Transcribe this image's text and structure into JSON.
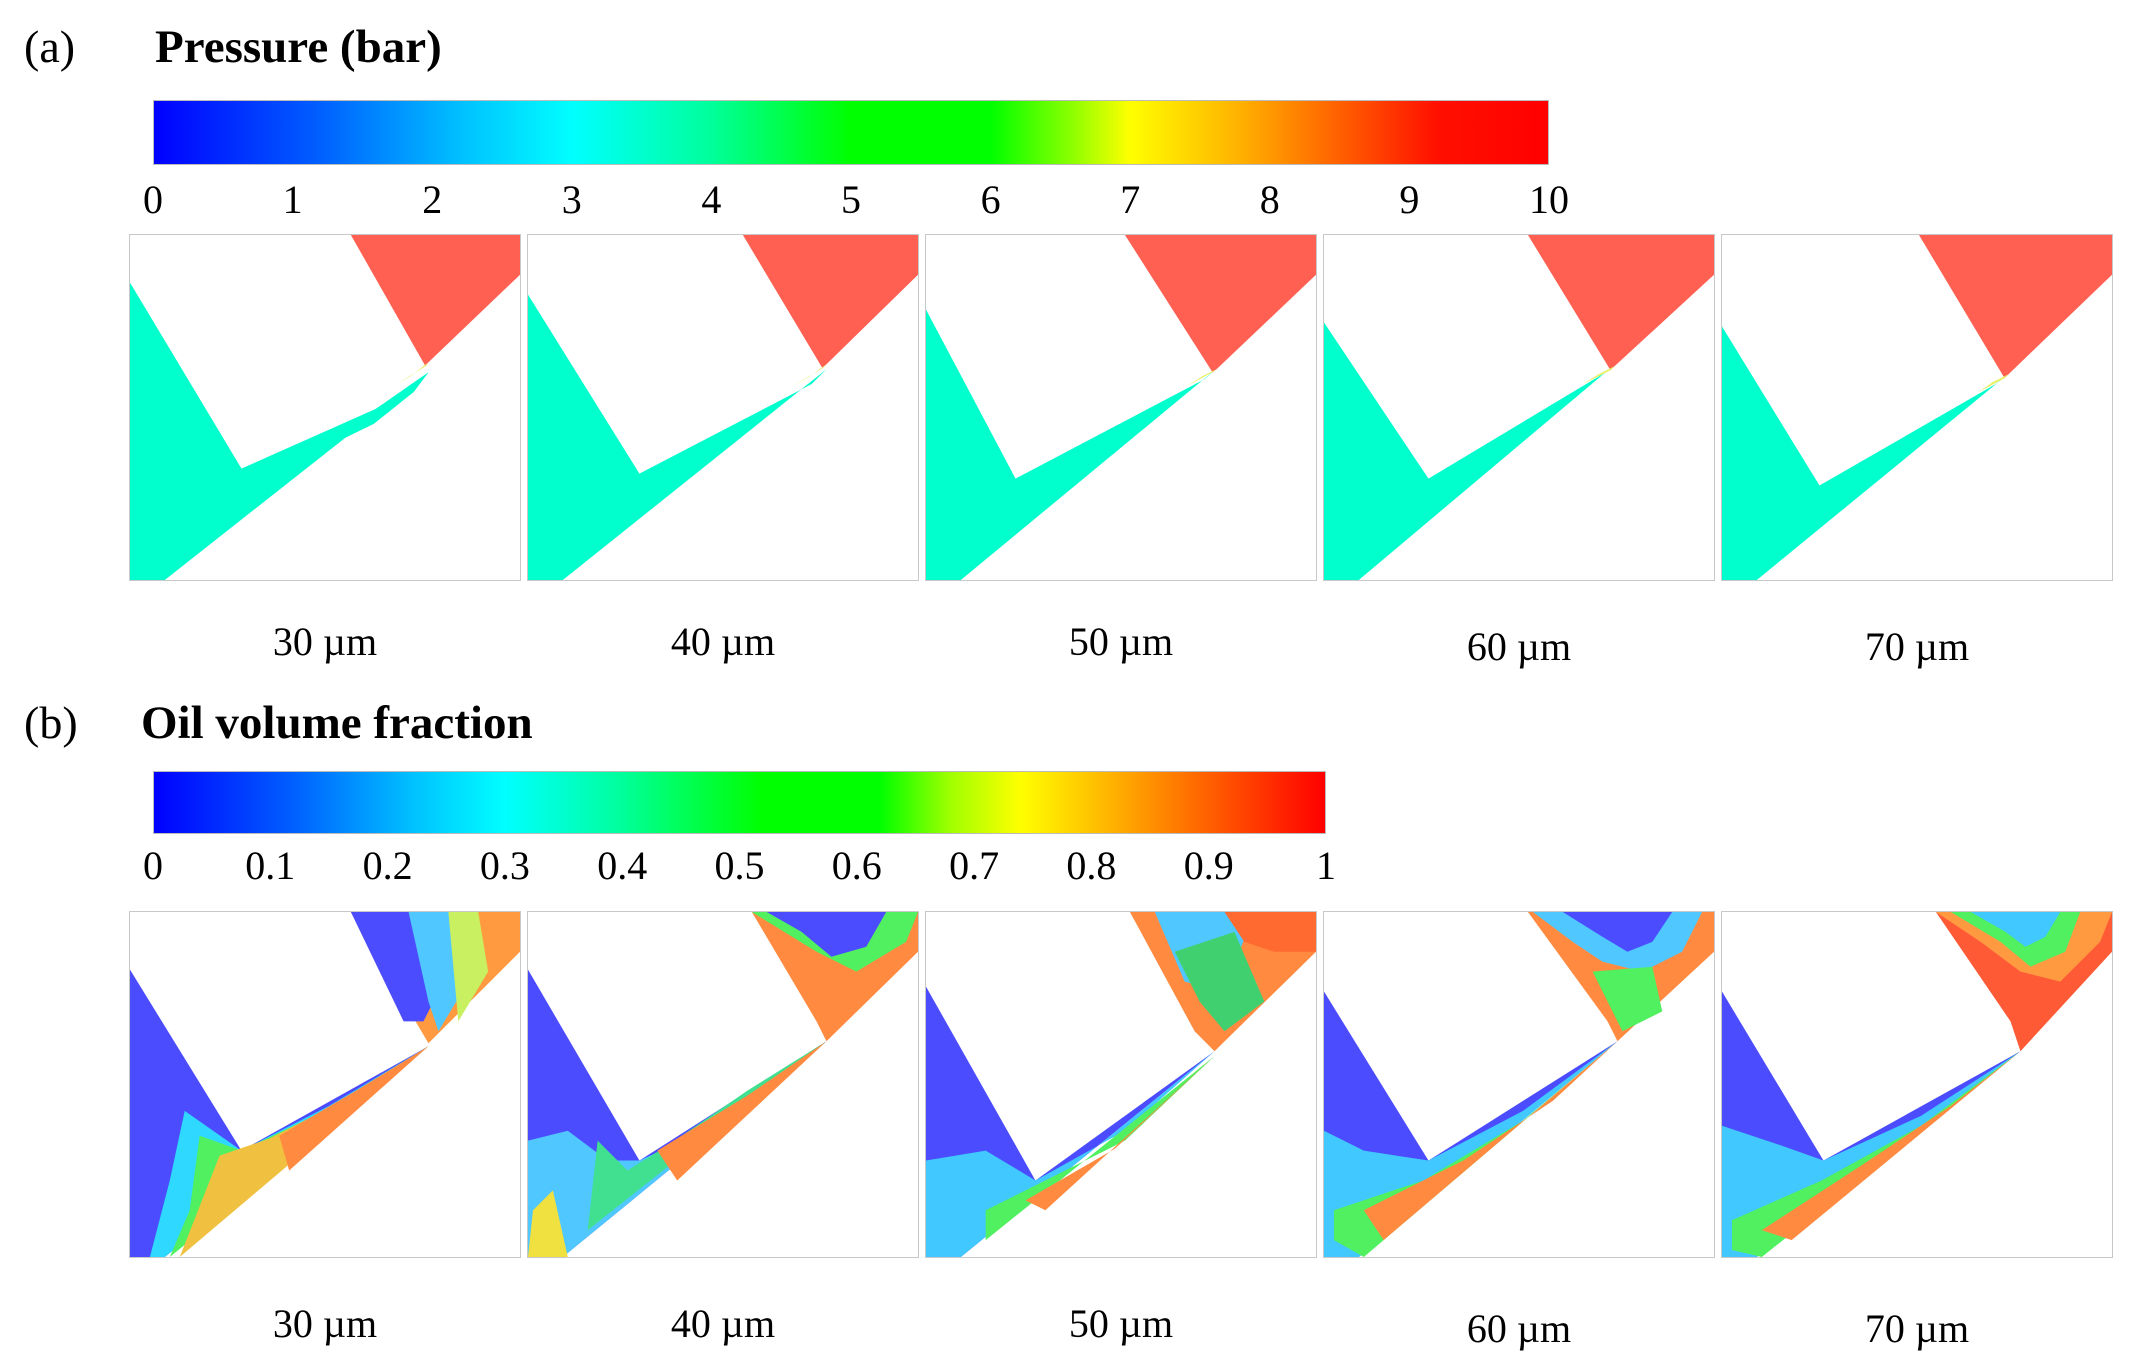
{
  "panel_a": {
    "letter": "(a)",
    "title": "Pressure (bar)",
    "colorbar_ticks": [
      "0",
      "1",
      "2",
      "3",
      "4",
      "5",
      "6",
      "7",
      "8",
      "9",
      "10"
    ],
    "captions": [
      "30 µm",
      "40 µm",
      "50 µm",
      "60 µm",
      "70 µm"
    ]
  },
  "panel_b": {
    "letter": "(b)",
    "title": "Oil volume fraction",
    "colorbar_ticks": [
      "0",
      "0.1",
      "0.2",
      "0.3",
      "0.4",
      "0.5",
      "0.6",
      "0.7",
      "0.8",
      "0.9",
      "1"
    ],
    "captions": [
      "30 µm",
      "40 µm",
      "50 µm",
      "60 µm",
      "70 µm"
    ]
  },
  "colors": {
    "low_pressure": "#00ffcc",
    "high_pressure": "#ff6052",
    "oil_low": "#4c4cff",
    "oil_high": "#ff5a36"
  }
}
